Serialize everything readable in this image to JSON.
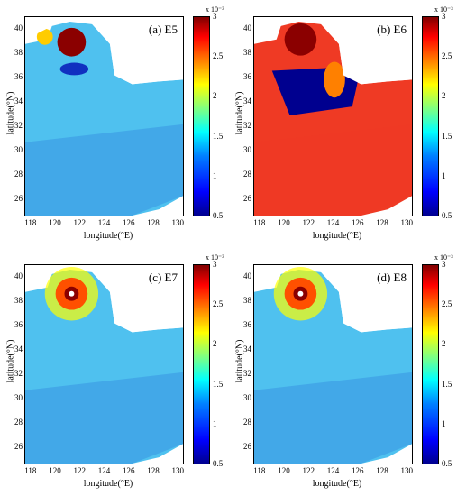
{
  "panels": [
    {
      "label": "(a) E5"
    },
    {
      "label": "(b) E6"
    },
    {
      "label": "(c) E7"
    },
    {
      "label": "(d) E8"
    }
  ],
  "axes": {
    "xlabel": "longitude(°E)",
    "ylabel": "latitude(°N)",
    "xticks": [
      "118",
      "120",
      "122",
      "124",
      "126",
      "128",
      "130"
    ],
    "yticks": [
      "40",
      "38",
      "36",
      "34",
      "32",
      "30",
      "28",
      "26"
    ],
    "xrange": [
      117.5,
      130.5
    ],
    "yrange": [
      24.5,
      41
    ]
  },
  "colorbar": {
    "exponent": "x 10⁻³",
    "ticks": [
      "3",
      "2.5",
      "2",
      "1.5",
      "1",
      "0.5"
    ],
    "range": [
      0.5,
      3
    ],
    "colormap": "jet"
  },
  "colors": {
    "sea_a": "#4fc1ef",
    "sea_b": "#ef3a24",
    "hot": "#8b0000"
  }
}
